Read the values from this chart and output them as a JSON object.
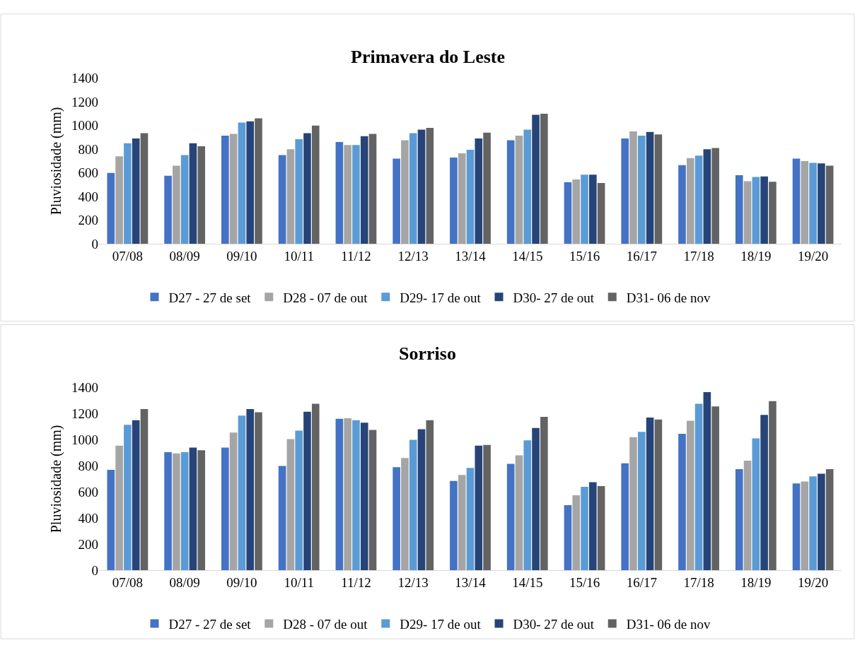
{
  "chart_data": [
    {
      "type": "bar",
      "title": "Primavera do Leste",
      "ylabel": "Pluviosidade (mm)",
      "categories": [
        "07/08",
        "08/09",
        "09/10",
        "10/11",
        "11/12",
        "12/13",
        "13/14",
        "14/15",
        "15/16",
        "16/17",
        "17/18",
        "18/19",
        "19/20"
      ],
      "ylim": [
        0,
        1400
      ],
      "yticks": [
        0,
        200,
        400,
        600,
        800,
        1000,
        1200,
        1400
      ],
      "grid": false,
      "legend": "bottom",
      "series": [
        {
          "name": "D27 - 27 de set",
          "color": "#4472c4",
          "values": [
            600,
            575,
            915,
            750,
            860,
            720,
            730,
            875,
            520,
            890,
            665,
            580,
            720
          ]
        },
        {
          "name": "D28 - 07 de out",
          "color": "#a5a5a5",
          "values": [
            740,
            660,
            930,
            800,
            835,
            875,
            765,
            915,
            545,
            950,
            725,
            530,
            700
          ]
        },
        {
          "name": "D29- 17 de out",
          "color": "#5b9bd5",
          "values": [
            850,
            750,
            1025,
            885,
            835,
            935,
            795,
            965,
            585,
            915,
            745,
            565,
            685
          ]
        },
        {
          "name": "D30- 27 de out",
          "color": "#264478",
          "values": [
            890,
            850,
            1035,
            935,
            910,
            965,
            890,
            1090,
            585,
            945,
            800,
            570,
            680
          ]
        },
        {
          "name": "D31- 06 de nov",
          "color": "#636363",
          "values": [
            935,
            825,
            1060,
            1000,
            930,
            980,
            940,
            1100,
            515,
            925,
            810,
            525,
            660
          ]
        }
      ]
    },
    {
      "type": "bar",
      "title": "Sorriso",
      "ylabel": "Pluviosidade (mm)",
      "categories": [
        "07/08",
        "08/09",
        "09/10",
        "10/11",
        "11/12",
        "12/13",
        "13/14",
        "14/15",
        "15/16",
        "16/17",
        "17/18",
        "18/19",
        "19/20"
      ],
      "ylim": [
        0,
        1400
      ],
      "yticks": [
        0,
        200,
        400,
        600,
        800,
        1000,
        1200,
        1400
      ],
      "grid": false,
      "legend": "bottom",
      "series": [
        {
          "name": "D27 - 27 de set",
          "color": "#4472c4",
          "values": [
            770,
            905,
            940,
            800,
            1160,
            790,
            685,
            815,
            500,
            820,
            1045,
            775,
            665
          ]
        },
        {
          "name": "D28 - 07 de out",
          "color": "#a5a5a5",
          "values": [
            955,
            895,
            1055,
            1005,
            1165,
            860,
            730,
            880,
            575,
            1020,
            1145,
            840,
            680
          ]
        },
        {
          "name": "D29- 17 de out",
          "color": "#5b9bd5",
          "values": [
            1115,
            905,
            1185,
            1070,
            1150,
            1000,
            785,
            995,
            640,
            1060,
            1275,
            1010,
            720
          ]
        },
        {
          "name": "D30- 27 de out",
          "color": "#264478",
          "values": [
            1150,
            940,
            1235,
            1215,
            1130,
            1080,
            955,
            1090,
            675,
            1170,
            1365,
            1190,
            740
          ]
        },
        {
          "name": "D31- 06 de nov",
          "color": "#636363",
          "values": [
            1235,
            920,
            1210,
            1275,
            1075,
            1150,
            960,
            1175,
            645,
            1155,
            1255,
            1295,
            775
          ]
        }
      ]
    }
  ]
}
